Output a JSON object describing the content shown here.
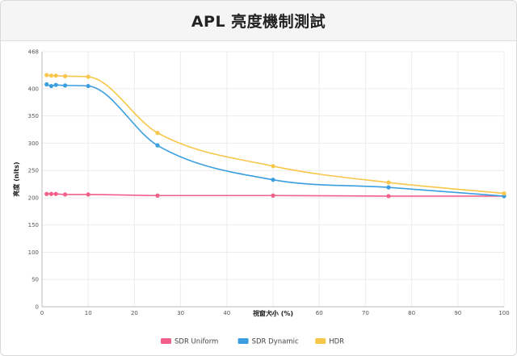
{
  "chart_data": {
    "type": "line",
    "title": "APL 亮度機制測試",
    "xlabel": "視窗大小 (%)",
    "ylabel": "亮度 (nits)",
    "xlim": [
      0,
      100
    ],
    "ylim": [
      0,
      468
    ],
    "x_ticks": [
      "0",
      "10",
      "20",
      "30",
      "40",
      "50",
      "60",
      "70",
      "80",
      "90",
      "100"
    ],
    "y_ticks": [
      "0",
      "50",
      "100",
      "150",
      "200",
      "250",
      "300",
      "350",
      "400",
      "468"
    ],
    "grid": true,
    "legend_position": "bottom",
    "series": [
      {
        "name": "SDR Uniform",
        "color": "#f0608a",
        "points": [
          [
            1,
            207
          ],
          [
            2,
            207
          ],
          [
            3,
            207
          ],
          [
            5,
            206
          ],
          [
            10,
            206
          ],
          [
            25,
            204
          ],
          [
            50,
            204
          ],
          [
            75,
            203
          ],
          [
            100,
            203
          ]
        ]
      },
      {
        "name": "SDR Dynamic",
        "color": "#3a9ee0",
        "points": [
          [
            1,
            408
          ],
          [
            2,
            405
          ],
          [
            3,
            407
          ],
          [
            5,
            406
          ],
          [
            10,
            405
          ],
          [
            25,
            296
          ],
          [
            50,
            233
          ],
          [
            75,
            219
          ],
          [
            100,
            203
          ]
        ]
      },
      {
        "name": "HDR",
        "color": "#f7c64a",
        "points": [
          [
            1,
            425
          ],
          [
            2,
            424
          ],
          [
            3,
            424
          ],
          [
            5,
            423
          ],
          [
            10,
            422
          ],
          [
            25,
            319
          ],
          [
            50,
            258
          ],
          [
            75,
            228
          ],
          [
            100,
            208
          ]
        ]
      }
    ]
  }
}
